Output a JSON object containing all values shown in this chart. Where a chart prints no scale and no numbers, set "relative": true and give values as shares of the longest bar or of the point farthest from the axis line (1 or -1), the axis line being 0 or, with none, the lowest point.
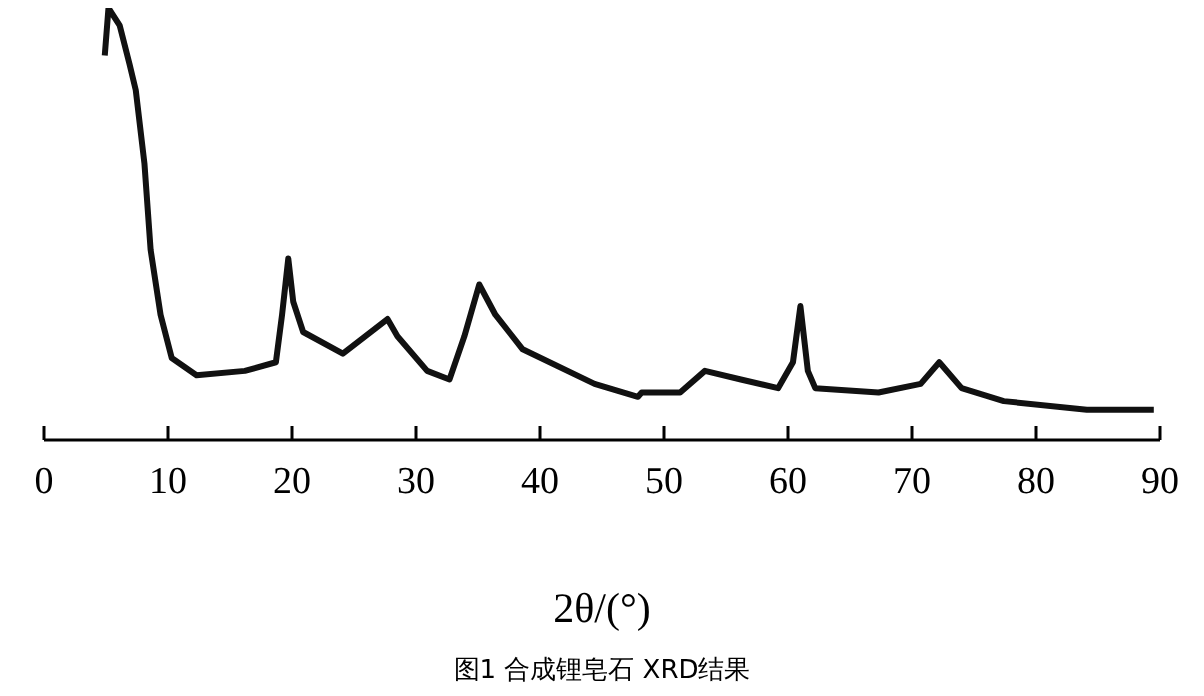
{
  "chart_data": {
    "type": "line",
    "relative": true,
    "xlabel": "2θ/(°)",
    "xlim": [
      0,
      90
    ],
    "xticks": [
      0,
      10,
      20,
      30,
      40,
      50,
      60,
      70,
      80,
      90
    ],
    "grid": false,
    "legend": false,
    "marker": "none",
    "line_style": "solid",
    "annotations": [
      "图1 合成锂皂石 XRD结果"
    ],
    "series": [
      {
        "color": "#111111",
        "x": [
          4.9,
          5.2,
          6.1,
          6.9,
          7.4,
          8.1,
          8.6,
          9.4,
          10.3,
          12.3,
          16.2,
          18.7,
          19.2,
          19.7,
          20.1,
          20.9,
          24.1,
          27.7,
          28.5,
          30.9,
          32.7,
          33.9,
          35.1,
          36.4,
          38.6,
          44.4,
          47.9,
          48.2,
          51.3,
          53.3,
          56.2,
          59.2,
          60.4,
          61.0,
          61.6,
          62.2,
          67.3,
          70.7,
          72.2,
          74.0,
          77.4,
          84.1,
          89.5
        ],
        "values": [
          0.89,
          1.0,
          0.96,
          0.87,
          0.81,
          0.64,
          0.44,
          0.29,
          0.19,
          0.15,
          0.16,
          0.18,
          0.29,
          0.42,
          0.32,
          0.25,
          0.2,
          0.28,
          0.24,
          0.16,
          0.14,
          0.24,
          0.36,
          0.29,
          0.21,
          0.13,
          0.1,
          0.11,
          0.11,
          0.16,
          0.14,
          0.12,
          0.18,
          0.31,
          0.16,
          0.12,
          0.11,
          0.13,
          0.18,
          0.12,
          0.09,
          0.07,
          0.07
        ]
      }
    ]
  }
}
